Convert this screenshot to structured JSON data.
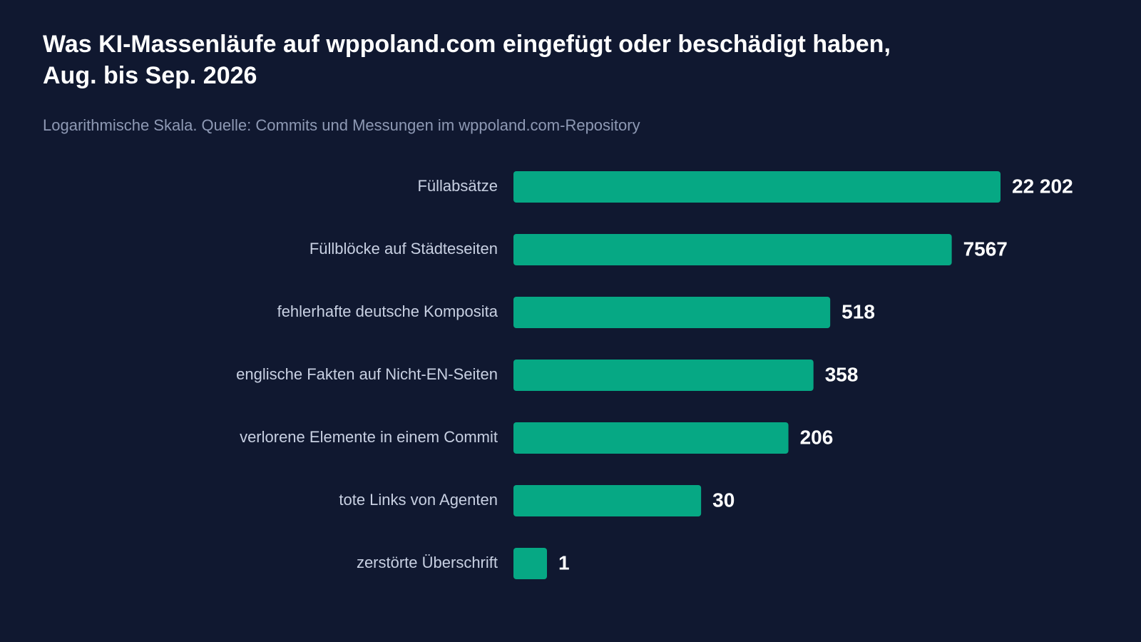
{
  "chart_data": {
    "type": "bar",
    "orientation": "horizontal",
    "title_lines": [
      "Was KI-Massenläufe auf wppoland.com eingefügt oder beschädigt haben,",
      "Aug. bis Sep. 2026"
    ],
    "subtitle": "Logarithmische Skala. Quelle: Commits und Messungen im wppoland.com-Repository",
    "categories": [
      "Füllabsätze",
      "Füllblöcke auf Städteseiten",
      "fehlerhafte deutsche Komposita",
      "englische Fakten auf Nicht-EN-Seiten",
      "verlorene Elemente in einem Commit",
      "tote Links von Agenten",
      "zerstörte Überschrift"
    ],
    "values": [
      22202,
      7567,
      518,
      358,
      206,
      30,
      1
    ],
    "value_labels": [
      "22 202",
      "7567",
      "518",
      "358",
      "206",
      "30",
      "1"
    ],
    "scale": "log",
    "axis_visible": false,
    "grid": false,
    "legend": "none",
    "colors": {
      "background": "#101830",
      "bar": "#06a884",
      "title": "#ffffff",
      "subtitle": "#8e99b4",
      "category_label": "#c8d0e2",
      "value_label": "#ffffff"
    }
  }
}
